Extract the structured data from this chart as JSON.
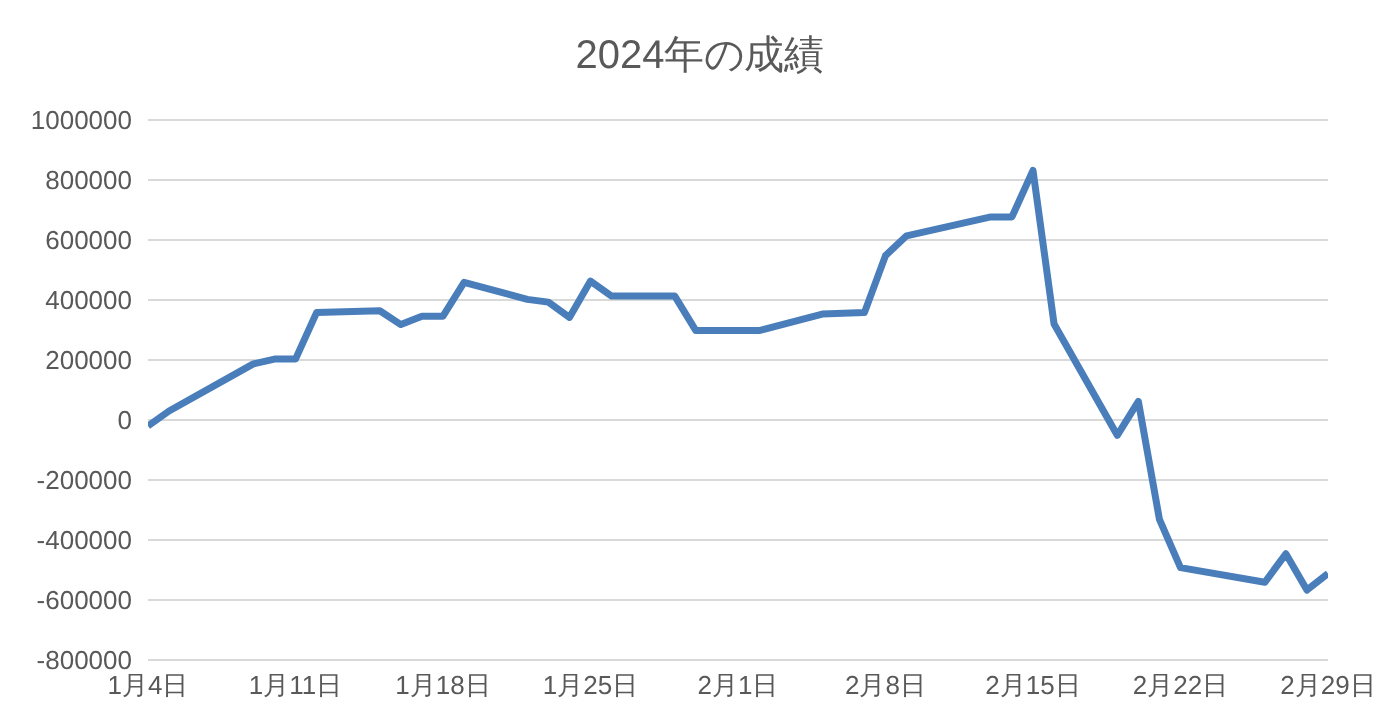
{
  "chart_data": {
    "type": "line",
    "title": "2024年の成績",
    "x": [
      "2024-01-04",
      "2024-01-05",
      "2024-01-09",
      "2024-01-10",
      "2024-01-11",
      "2024-01-12",
      "2024-01-15",
      "2024-01-16",
      "2024-01-17",
      "2024-01-18",
      "2024-01-19",
      "2024-01-22",
      "2024-01-23",
      "2024-01-24",
      "2024-01-25",
      "2024-01-26",
      "2024-01-29",
      "2024-01-30",
      "2024-02-02",
      "2024-02-05",
      "2024-02-07",
      "2024-02-08",
      "2024-02-09",
      "2024-02-13",
      "2024-02-14",
      "2024-02-15",
      "2024-02-16",
      "2024-02-19",
      "2024-02-20",
      "2024-02-21",
      "2024-02-22",
      "2024-02-26",
      "2024-02-27",
      "2024-02-28",
      "2024-02-29"
    ],
    "series": [
      {
        "color": "#4a7ebb",
        "values": [
          -20000,
          30000,
          187000,
          203000,
          203000,
          358000,
          364000,
          318000,
          346000,
          346000,
          459000,
          402000,
          393000,
          342000,
          463000,
          413000,
          413000,
          298000,
          298000,
          353000,
          358000,
          548000,
          614000,
          677000,
          677000,
          832000,
          320000,
          -51000,
          62000,
          -331000,
          -492000,
          -541000,
          -446000,
          -567000,
          -512000
        ]
      }
    ],
    "xlim": [
      "2024-01-04",
      "2024-02-29"
    ],
    "xticks": [
      {
        "value": "2024-01-04",
        "label": "1月4日"
      },
      {
        "value": "2024-01-11",
        "label": "1月11日"
      },
      {
        "value": "2024-01-18",
        "label": "1月18日"
      },
      {
        "value": "2024-01-25",
        "label": "1月25日"
      },
      {
        "value": "2024-02-01",
        "label": "2月1日"
      },
      {
        "value": "2024-02-08",
        "label": "2月8日"
      },
      {
        "value": "2024-02-15",
        "label": "2月15日"
      },
      {
        "value": "2024-02-22",
        "label": "2月22日"
      },
      {
        "value": "2024-02-29",
        "label": "2月29日"
      }
    ],
    "ylim": [
      -800000,
      1000000
    ],
    "yticks": [
      -800000,
      -600000,
      -400000,
      -200000,
      0,
      200000,
      400000,
      600000,
      800000,
      1000000
    ],
    "grid": "y",
    "legend": false,
    "marker": "none",
    "line_style": "solid"
  }
}
